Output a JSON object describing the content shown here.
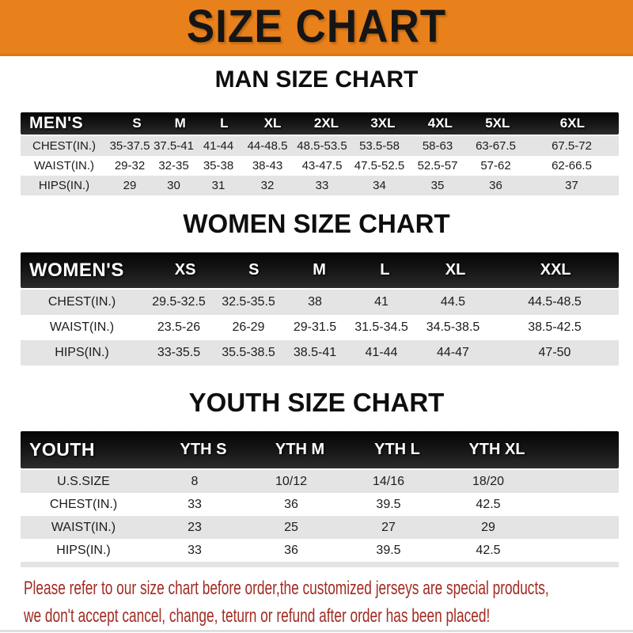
{
  "banner": {
    "title": "SIZE CHART",
    "bg_color": "#e8811c",
    "text_color": "#151515"
  },
  "sections": [
    {
      "id": "men",
      "heading": "MAN SIZE CHART",
      "table": {
        "header_label": "MEN'S",
        "columns": [
          "S",
          "M",
          "L",
          "XL",
          "2XL",
          "3XL",
          "4XL",
          "5XL",
          "6XL"
        ],
        "rows": [
          {
            "label": "CHEST(IN.)",
            "values": [
              "35-37.5",
              "37.5-41",
              "41-44",
              "44-48.5",
              "48.5-53.5",
              "53.5-58",
              "58-63",
              "63-67.5",
              "67.5-72"
            ]
          },
          {
            "label": "WAIST(IN.)",
            "values": [
              "29-32",
              "32-35",
              "35-38",
              "38-43",
              "43-47.5",
              "47.5-52.5",
              "52.5-57",
              "57-62",
              "62-66.5"
            ]
          },
          {
            "label": "HIPS(IN.)",
            "values": [
              "29",
              "30",
              "31",
              "32",
              "33",
              "34",
              "35",
              "36",
              "37"
            ]
          }
        ]
      }
    },
    {
      "id": "women",
      "heading": "WOMEN SIZE CHART",
      "table": {
        "header_label": "WOMEN'S",
        "columns": [
          "XS",
          "S",
          "M",
          "L",
          "XL",
          "XXL"
        ],
        "rows": [
          {
            "label": "CHEST(IN.)",
            "values": [
              "29.5-32.5",
              "32.5-35.5",
              "38",
              "41",
              "44.5",
              "44.5-48.5"
            ]
          },
          {
            "label": "WAIST(IN.)",
            "values": [
              "23.5-26",
              "26-29",
              "29-31.5",
              "31.5-34.5",
              "34.5-38.5",
              "38.5-42.5"
            ]
          },
          {
            "label": "HIPS(IN.)",
            "values": [
              "33-35.5",
              "35.5-38.5",
              "38.5-41",
              "41-44",
              "44-47",
              "47-50"
            ]
          }
        ]
      }
    },
    {
      "id": "youth",
      "heading": "YOUTH SIZE CHART",
      "table": {
        "header_label": "YOUTH",
        "columns": [
          "YTH S",
          "YTH M",
          "YTH L",
          "YTH XL"
        ],
        "rows": [
          {
            "label": "U.S.SIZE",
            "values": [
              "8",
              "10/12",
              "14/16",
              "18/20"
            ]
          },
          {
            "label": "CHEST(IN.)",
            "values": [
              "33",
              "36",
              "39.5",
              "42.5"
            ]
          },
          {
            "label": "WAIST(IN.)",
            "values": [
              "23",
              "25",
              "27",
              "29"
            ]
          },
          {
            "label": "HIPS(IN.)",
            "values": [
              "33",
              "36",
              "39.5",
              "42.5"
            ]
          }
        ]
      }
    }
  ],
  "footer": {
    "line1": "Please refer to our size chart before order,the customized jerseys are special products,",
    "line2": "we don't accept cancel, change, teturn or refund after order has been placed!",
    "text_color": "#a22b23"
  },
  "colors": {
    "banner_orange": "#e8811c",
    "table_header_black": "#141414",
    "stripe_gray": "#e4e4e4",
    "footer_red": "#a22b23"
  }
}
